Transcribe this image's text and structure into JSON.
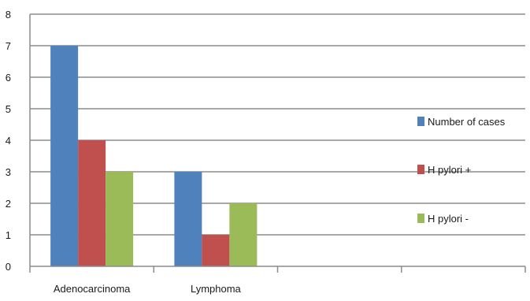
{
  "chart_data": {
    "type": "bar",
    "categories": [
      "Adenocarcinoma",
      "Lymphoma",
      "",
      ""
    ],
    "series": [
      {
        "name": "Number of cases",
        "color": "#4F81BD",
        "values": [
          7,
          3,
          null,
          null
        ]
      },
      {
        "name": "H pylori +",
        "color": "#C0504D",
        "values": [
          4,
          1,
          null,
          null
        ]
      },
      {
        "name": "H pylori -",
        "color": "#9BBB59",
        "values": [
          3,
          2,
          null,
          null
        ]
      }
    ],
    "ylim": [
      0,
      8
    ],
    "yticks": [
      0,
      1,
      2,
      3,
      4,
      5,
      6,
      7,
      8
    ],
    "grid": true,
    "legend_position": "right"
  }
}
